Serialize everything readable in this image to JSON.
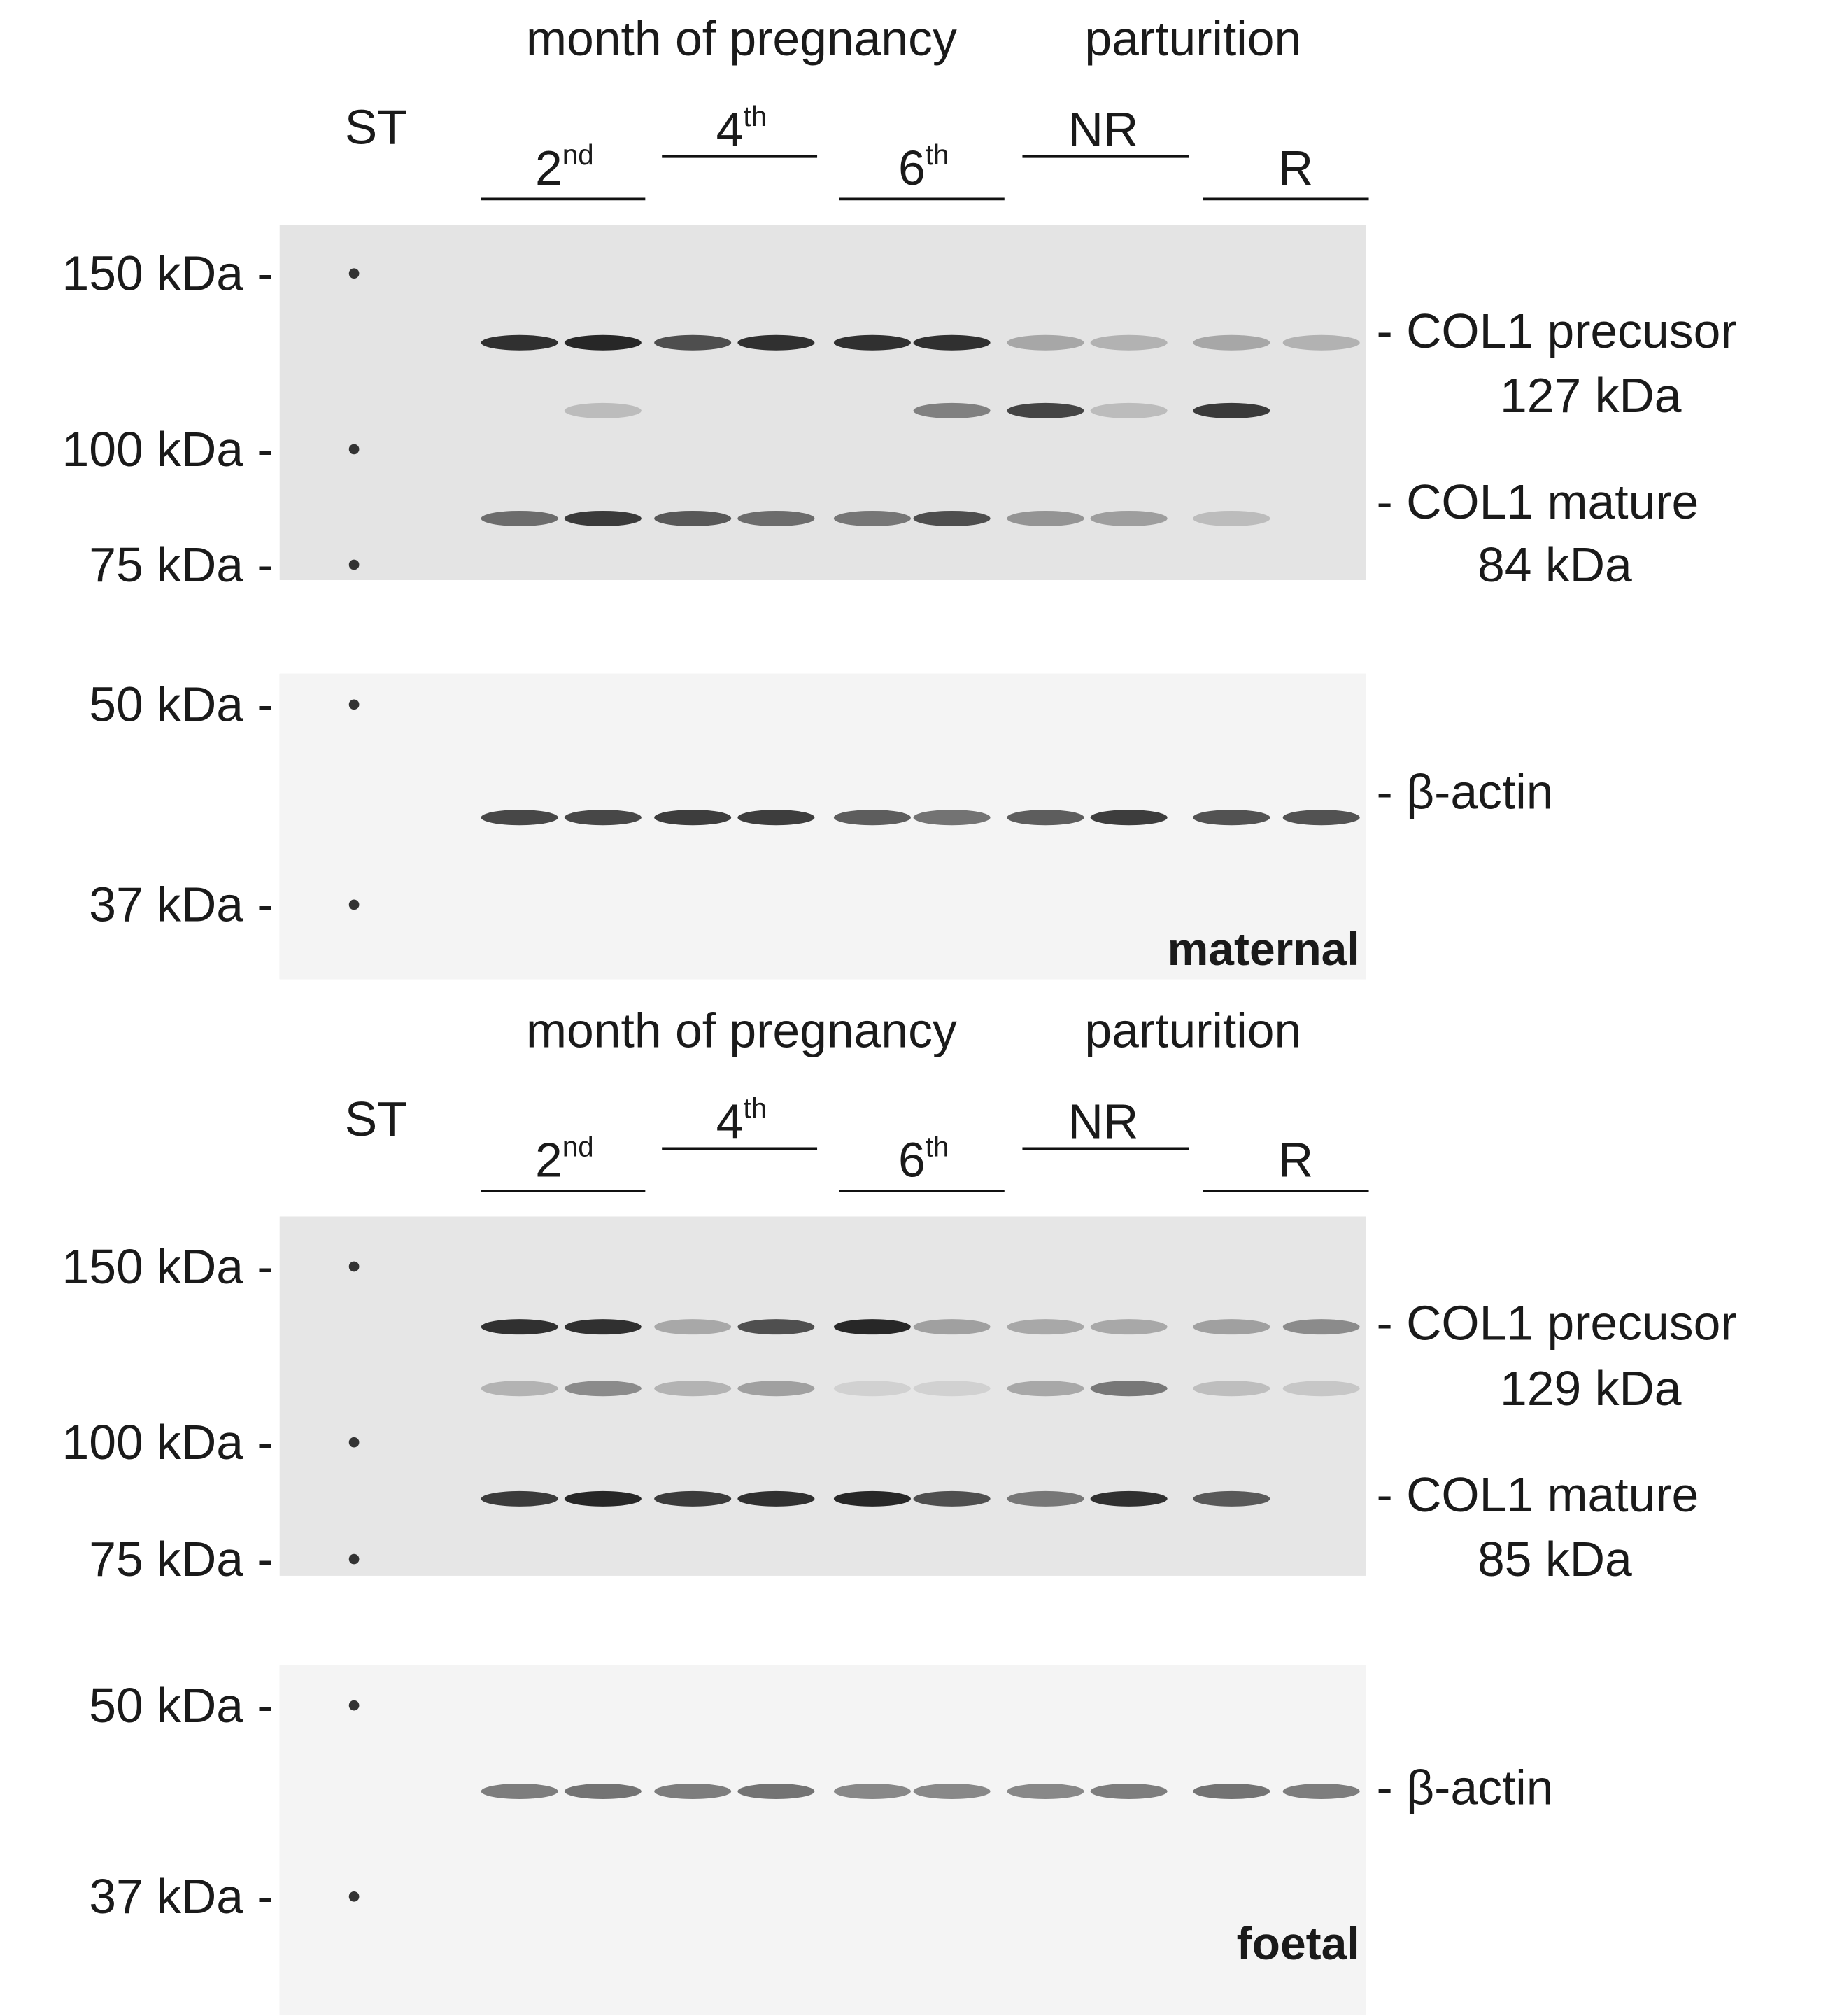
{
  "panels": [
    {
      "label": "maternal",
      "headers": {
        "month": "month of pregnancy",
        "parturition": "parturition",
        "standard": "ST"
      },
      "groups": [
        {
          "base": "2",
          "sup": "nd"
        },
        {
          "base": "4",
          "sup": "th"
        },
        {
          "base": "6",
          "sup": "th"
        },
        {
          "base": "NR"
        },
        {
          "base": "R"
        }
      ],
      "markers_top": [
        "150 kDa -",
        "100 kDa -",
        "75 kDa -"
      ],
      "markers_bottom": [
        "50 kDa -",
        "37 kDa -"
      ],
      "bands": {
        "precursor": "- COL1 precusor",
        "precursor_size": "127 kDa",
        "mature": "- COL1 mature",
        "mature_size": "84 kDa",
        "actin": "- β-actin"
      }
    },
    {
      "label": "foetal",
      "headers": {
        "month": "month of pregnancy",
        "parturition": "parturition",
        "standard": "ST"
      },
      "groups": [
        {
          "base": "2",
          "sup": "nd"
        },
        {
          "base": "4",
          "sup": "th"
        },
        {
          "base": "6",
          "sup": "th"
        },
        {
          "base": "NR"
        },
        {
          "base": "R"
        }
      ],
      "markers_top": [
        "150 kDa -",
        "100 kDa -",
        "75 kDa -"
      ],
      "markers_bottom": [
        "50 kDa -",
        "37 kDa -"
      ],
      "bands": {
        "precursor": "- COL1 precusor",
        "precursor_size": "129 kDa",
        "mature": "- COL1 mature",
        "mature_size": "85 kDa",
        "actin": "- β-actin"
      }
    }
  ]
}
